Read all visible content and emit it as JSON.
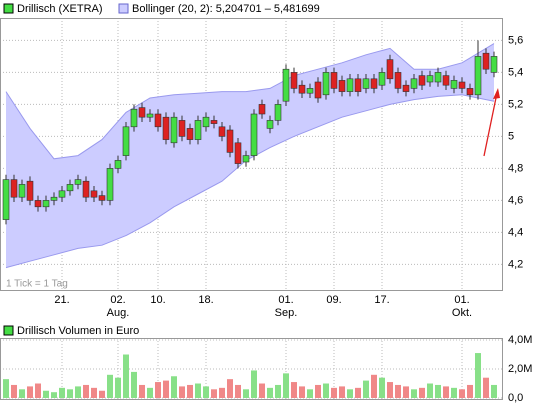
{
  "chart_data": {
    "type": "candlestick",
    "legend": {
      "price": "Drillisch (XETRA)",
      "band": "Bollinger (20, 2): 5,204701 – 5,481699",
      "volume": "Drillisch Volumen in Euro"
    },
    "note": "1 Tick = 1 Tag",
    "colors": {
      "up": "#44dd44",
      "down": "#dd2222",
      "band": "#ccccff",
      "band_line": "#9999ee",
      "vol_up": "#88e088",
      "vol_down": "#f08888"
    },
    "grid": true,
    "xlim": [
      -0.75,
      62.125
    ],
    "xticks": [
      {
        "value": 7,
        "label": "21."
      },
      {
        "value": 14,
        "label": "02."
      },
      {
        "value": 19,
        "label": "10."
      },
      {
        "value": 25,
        "label": "18."
      },
      {
        "value": 35,
        "label": "01."
      },
      {
        "value": 41,
        "label": "09."
      },
      {
        "value": 47,
        "label": "17."
      },
      {
        "value": 57,
        "label": "01."
      }
    ],
    "month_labels": [
      {
        "value": 14,
        "label": "Aug."
      },
      {
        "value": 35,
        "label": "Sep."
      },
      {
        "value": 57,
        "label": "Okt."
      }
    ],
    "ylim": [
      4.04,
      5.74
    ],
    "yticks": [
      {
        "value": 4.2,
        "label": "4,2"
      },
      {
        "value": 4.4,
        "label": "4,4"
      },
      {
        "value": 4.6,
        "label": "4,6"
      },
      {
        "value": 4.8,
        "label": "4,8"
      },
      5,
      {
        "value": 5.2,
        "label": "5,2"
      },
      {
        "value": 5.4,
        "label": "5,4"
      },
      {
        "value": 5.6,
        "label": "5,6"
      }
    ],
    "open": [
      4.48,
      4.73,
      4.62,
      4.72,
      4.6,
      4.56,
      4.6,
      4.62,
      4.66,
      4.7,
      4.72,
      4.66,
      4.63,
      4.6,
      4.8,
      4.88,
      5.06,
      5.18,
      5.12,
      5.14,
      5.12,
      4.96,
      5.1,
      5.05,
      4.98,
      5.06,
      5.1,
      5.06,
      5.04,
      4.96,
      4.84,
      4.88,
      5.2,
      5.05,
      5.1,
      5.22,
      5.4,
      5.32,
      5.27,
      5.34,
      5.26,
      5.4,
      5.35,
      5.28,
      5.36,
      5.3,
      5.36,
      5.32,
      5.48,
      5.4,
      5.32,
      5.3,
      5.38,
      5.34,
      5.34,
      5.38,
      5.3,
      5.34,
      5.3,
      5.26,
      5.52,
      5.4
    ],
    "high": [
      4.76,
      4.76,
      4.73,
      4.75,
      4.63,
      4.63,
      4.65,
      4.69,
      4.73,
      4.76,
      4.75,
      4.69,
      4.66,
      4.83,
      4.88,
      5.09,
      5.2,
      5.21,
      5.17,
      5.17,
      5.15,
      5.15,
      5.13,
      5.08,
      5.13,
      5.15,
      5.13,
      5.09,
      5.07,
      4.99,
      4.91,
      5.17,
      5.23,
      5.13,
      5.23,
      5.45,
      5.43,
      5.35,
      5.33,
      5.37,
      5.43,
      5.43,
      5.38,
      5.39,
      5.39,
      5.39,
      5.39,
      5.43,
      5.51,
      5.43,
      5.35,
      5.39,
      5.41,
      5.41,
      5.43,
      5.41,
      5.38,
      5.37,
      5.33,
      5.6,
      5.55,
      5.53
    ],
    "low": [
      4.45,
      4.59,
      4.59,
      4.57,
      4.53,
      4.53,
      4.57,
      4.59,
      4.63,
      4.67,
      4.59,
      4.59,
      4.57,
      4.57,
      4.77,
      4.85,
      5.03,
      5.09,
      5.09,
      5.03,
      4.95,
      4.93,
      4.97,
      4.95,
      4.95,
      5.03,
      5.05,
      4.97,
      4.87,
      4.8,
      4.81,
      4.85,
      5.11,
      5.02,
      5.07,
      5.19,
      5.27,
      5.24,
      5.24,
      5.21,
      5.23,
      5.27,
      5.25,
      5.25,
      5.25,
      5.27,
      5.27,
      5.29,
      5.33,
      5.27,
      5.25,
      5.27,
      5.29,
      5.31,
      5.31,
      5.29,
      5.27,
      5.27,
      5.23,
      5.23,
      5.39,
      5.37
    ],
    "close": [
      4.73,
      4.62,
      4.7,
      4.6,
      4.56,
      4.6,
      4.62,
      4.66,
      4.7,
      4.73,
      4.62,
      4.62,
      4.6,
      4.8,
      4.85,
      5.06,
      5.17,
      5.12,
      5.14,
      5.06,
      4.98,
      5.12,
      5.0,
      4.98,
      5.1,
      5.12,
      5.08,
      5.0,
      4.9,
      4.83,
      4.88,
      5.14,
      5.14,
      5.1,
      5.2,
      5.42,
      5.3,
      5.27,
      5.3,
      5.24,
      5.4,
      5.3,
      5.28,
      5.36,
      5.28,
      5.36,
      5.3,
      5.4,
      5.36,
      5.3,
      5.28,
      5.36,
      5.32,
      5.38,
      5.4,
      5.32,
      5.35,
      5.3,
      5.26,
      5.5,
      5.42,
      5.5
    ],
    "band": {
      "x": [
        0,
        3,
        6,
        9,
        12,
        15,
        18,
        21,
        24,
        27,
        30,
        33,
        36,
        39,
        42,
        45,
        48,
        51,
        54,
        57,
        61
      ],
      "upper": [
        5.28,
        5.05,
        4.86,
        4.88,
        4.98,
        5.15,
        5.24,
        5.26,
        5.27,
        5.28,
        5.28,
        5.3,
        5.38,
        5.42,
        5.46,
        5.51,
        5.55,
        5.42,
        5.42,
        5.46,
        5.58
      ],
      "lower": [
        4.18,
        4.22,
        4.26,
        4.3,
        4.32,
        4.38,
        4.46,
        4.56,
        4.64,
        4.72,
        4.85,
        4.93,
        5.0,
        5.06,
        5.12,
        5.16,
        5.2,
        5.23,
        5.25,
        5.26,
        5.22
      ]
    },
    "volume": [
      1300000,
      900000,
      600000,
      800000,
      1000000,
      500000,
      400000,
      700000,
      600000,
      800000,
      900000,
      700000,
      500000,
      1600000,
      1400000,
      3000000,
      1800000,
      900000,
      700000,
      1100000,
      1200000,
      1500000,
      800000,
      900000,
      1000000,
      800000,
      600000,
      700000,
      1300000,
      900000,
      600000,
      1900000,
      1000000,
      700000,
      900000,
      1700000,
      1100000,
      800000,
      600000,
      900000,
      1000000,
      700000,
      800000,
      600000,
      700000,
      1200000,
      1600000,
      1400000,
      1100000,
      900000,
      800000,
      600000,
      700000,
      1000000,
      900000,
      800000,
      700000,
      600000,
      900000,
      3100000,
      1400000,
      900000
    ],
    "vlim": [
      0,
      4000000
    ],
    "vticks": [
      {
        "value": 0,
        "label": "0,0"
      },
      {
        "value": 2000000,
        "label": "2,0M"
      },
      {
        "value": 4000000,
        "label": "4,0M"
      }
    ]
  }
}
